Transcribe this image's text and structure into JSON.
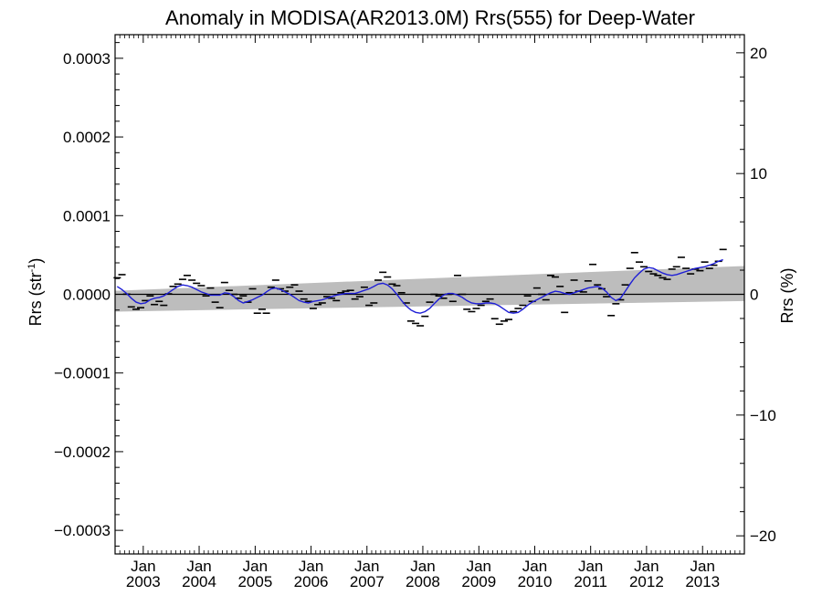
{
  "chart_data": {
    "type": "line",
    "title": "Anomaly in MODISA(AR2013.0M) Rrs(555) for Deep-Water",
    "ylabel_left_main": "Rrs (str",
    "ylabel_left_sup": "-1",
    "ylabel_left_close": ")",
    "ylabel_right": "Rrs (%)",
    "xlabel": "",
    "x_range": [
      "2002-07-01",
      "2013-10-01"
    ],
    "ylim_left": [
      -0.00033,
      0.00033
    ],
    "ylim_right": [
      -21.5,
      21.5
    ],
    "yticks_left": [
      {
        "value": 0.0003,
        "label": "0.0003"
      },
      {
        "value": 0.0002,
        "label": "0.0002"
      },
      {
        "value": 0.0001,
        "label": "0.0001"
      },
      {
        "value": 0.0,
        "label": "0.0000"
      },
      {
        "value": -0.0001,
        "label": "−0.0001"
      },
      {
        "value": -0.0002,
        "label": "−0.0002"
      },
      {
        "value": -0.0003,
        "label": "−0.0003"
      }
    ],
    "yticks_right": [
      {
        "value": 20,
        "label": "20"
      },
      {
        "value": 10,
        "label": "10"
      },
      {
        "value": 0,
        "label": "0"
      },
      {
        "value": -10,
        "label": "−10"
      },
      {
        "value": -20,
        "label": "−20"
      }
    ],
    "xticks": [
      {
        "date": "2003-01-01",
        "month": "Jan",
        "year": "2003"
      },
      {
        "date": "2004-01-01",
        "month": "Jan",
        "year": "2004"
      },
      {
        "date": "2005-01-01",
        "month": "Jan",
        "year": "2005"
      },
      {
        "date": "2006-01-01",
        "month": "Jan",
        "year": "2006"
      },
      {
        "date": "2007-01-01",
        "month": "Jan",
        "year": "2007"
      },
      {
        "date": "2008-01-01",
        "month": "Jan",
        "year": "2008"
      },
      {
        "date": "2009-01-01",
        "month": "Jan",
        "year": "2009"
      },
      {
        "date": "2010-01-01",
        "month": "Jan",
        "year": "2010"
      },
      {
        "date": "2011-01-01",
        "month": "Jan",
        "year": "2011"
      },
      {
        "date": "2012-01-01",
        "month": "Jan",
        "year": "2012"
      },
      {
        "date": "2013-01-01",
        "month": "Jan",
        "year": "2013"
      }
    ],
    "trend_band": {
      "start": {
        "date": "2002-07-01",
        "upper": 4.5e-06,
        "lower": -2.2e-05
      },
      "end": {
        "date": "2013-10-01",
        "upper": 3.6e-05,
        "lower": -8.5e-06
      }
    },
    "zero_line": 0.0,
    "monthly_anomalies": {
      "start": "2002-07",
      "values": [
        2.1e-05,
        2.5e-05,
        2e-07,
        -1.6e-05,
        -1.9e-05,
        -1.7e-05,
        -8e-06,
        -2e-06,
        -1.3e-05,
        -9e-06,
        -1.4e-05,
        5e-07,
        1e-05,
        1.3e-05,
        1.9e-05,
        2.4e-05,
        1.8e-05,
        1.4e-05,
        1.1e-05,
        -2e-06,
        8e-06,
        -1e-05,
        -1.7e-05,
        1.5e-05,
        5e-06,
        0.0,
        -5e-06,
        -2e-06,
        -1e-05,
        7e-06,
        -2.4e-05,
        -1.9e-05,
        -2.4e-05,
        9e-06,
        1.8e-05,
        7e-06,
        4e-06,
        9e-06,
        1.2e-05,
        4e-06,
        -6e-06,
        -9e-06,
        -1.8e-05,
        -1.3e-05,
        -1.1e-05,
        -3e-06,
        -5e-06,
        -8e-06,
        2e-06,
        4e-06,
        5e-06,
        -6e-06,
        -3e-06,
        9e-06,
        -1.4e-05,
        -1.1e-05,
        1.8e-05,
        2.8e-05,
        2.2e-05,
        1.3e-05,
        1.1e-05,
        2e-06,
        -1.1e-05,
        -3.4e-05,
        -3.7e-05,
        -4e-05,
        -2.8e-05,
        -1e-05,
        0.0,
        -2e-06,
        -5e-06,
        0.0,
        -9e-06,
        2.4e-05,
        0.0,
        -1.9e-05,
        -2.2e-05,
        -1.8e-05,
        -1.4e-05,
        -9e-06,
        -6e-06,
        -3.1e-05,
        -3.8e-05,
        -3.4e-05,
        -3.2e-05,
        -2.2e-05,
        -1.8e-05,
        -1.4e-05,
        -2e-06,
        -9e-06,
        8e-06,
        0.0,
        -7e-06,
        2.4e-05,
        2.2e-05,
        1e-05,
        -2.3e-05,
        2e-06,
        1.8e-05,
        4e-06,
        3e-06,
        1.7e-05,
        3.8e-05,
        1.2e-05,
        7e-06,
        -3e-06,
        -2.7e-05,
        -1.2e-05,
        -7e-06,
        1.2e-05,
        3.3e-05,
        5.3e-05,
        4.1e-05,
        3.5e-05,
        2.9e-05,
        2.6e-05,
        2.4e-05,
        2.1e-05,
        1.9e-05,
        3.2e-05,
        3.5e-05,
        4.7e-05,
        3.3e-05,
        2.6e-05,
        3.2e-05,
        3e-05,
        4.1e-05,
        3.3e-05,
        3.7e-05,
        4.2e-05,
        5.7e-05
      ]
    },
    "smoothed_anomaly": {
      "color": "#1f1fd6",
      "start": "2002-07",
      "values": [
        1e-05,
        6e-06,
        1e-06,
        -5e-06,
        -1e-05,
        -1.2e-05,
        -1.1e-05,
        -7e-06,
        -5e-06,
        -4e-06,
        -2e-06,
        2e-06,
        6e-06,
        1e-05,
        1.2e-05,
        1.1e-05,
        9e-06,
        6e-06,
        3e-06,
        1e-06,
        -1e-06,
        -1e-06,
        -1e-06,
        2e-06,
        1e-06,
        -3e-06,
        -8e-06,
        -1.1e-05,
        -9e-06,
        -7e-06,
        -4e-06,
        -1e-06,
        3e-06,
        7e-06,
        8e-06,
        6e-06,
        3e-06,
        0.0,
        -4e-06,
        -8e-06,
        -1e-05,
        -1.1e-05,
        -9e-06,
        -8e-06,
        -7e-06,
        -5e-06,
        -3e-06,
        -1e-06,
        0.0,
        1e-06,
        1e-06,
        1e-06,
        3e-06,
        5e-06,
        7e-06,
        1e-05,
        1.3e-05,
        1.4e-05,
        1.2e-05,
        7e-06,
        0.0,
        -8e-06,
        -1.5e-05,
        -2e-05,
        -2.3e-05,
        -2.4e-05,
        -2.2e-05,
        -1.8e-05,
        -1.2e-05,
        -6e-06,
        -1e-06,
        1e-06,
        1e-06,
        -1e-06,
        -4e-06,
        -8e-06,
        -1.1e-05,
        -1.2e-05,
        -1.2e-05,
        -1.1e-05,
        -1.1e-05,
        -1.2e-05,
        -1.5e-05,
        -1.9e-05,
        -2.3e-05,
        -2.4e-05,
        -2.3e-05,
        -1.9e-05,
        -1.4e-05,
        -1e-05,
        -7e-06,
        -4e-06,
        -1e-06,
        2e-06,
        4e-06,
        3e-06,
        1e-06,
        0.0,
        2e-06,
        4e-06,
        6e-06,
        8e-06,
        9e-06,
        1e-05,
        8e-06,
        3e-06,
        -4e-06,
        -8e-06,
        -5e-06,
        4e-06,
        1.3e-05,
        2.1e-05,
        2.7e-05,
        3.2e-05,
        3.4e-05,
        3.3e-05,
        3e-05,
        2.7e-05,
        2.5e-05,
        2.4e-05,
        2.5e-05,
        2.7e-05,
        2.9e-05,
        3.1e-05,
        3.3e-05,
        3.4e-05,
        3.5e-05,
        3.7e-05,
        3.9e-05,
        4.2e-05,
        4.4e-05
      ]
    },
    "grid": false,
    "legend": "none"
  }
}
